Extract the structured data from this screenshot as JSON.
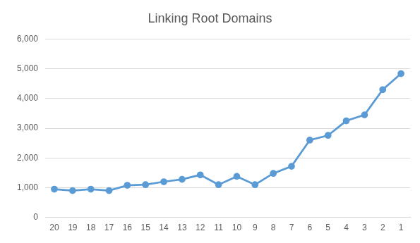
{
  "chart_data": {
    "type": "line",
    "title": "Linking Root Domains",
    "categories": [
      "20",
      "19",
      "18",
      "17",
      "16",
      "15",
      "14",
      "13",
      "12",
      "11",
      "10",
      "9",
      "8",
      "7",
      "6",
      "5",
      "4",
      "3",
      "2",
      "1"
    ],
    "values": [
      950,
      900,
      950,
      900,
      1080,
      1100,
      1200,
      1280,
      1430,
      1100,
      1380,
      1100,
      1480,
      1720,
      2600,
      2760,
      3250,
      3450,
      4300,
      4840
    ],
    "color": "#5b9bd5",
    "marker": "circle",
    "line_style": "solid",
    "ylim": [
      0,
      6000
    ],
    "yticks": [
      0,
      {
        "value": 1000,
        "label": "1,000"
      },
      {
        "value": 2000,
        "label": "2,000"
      },
      {
        "value": 3000,
        "label": "3,000"
      },
      {
        "value": 4000,
        "label": "4,000"
      },
      {
        "value": 5000,
        "label": "5,000"
      },
      {
        "value": 6000,
        "label": "6,000"
      }
    ],
    "grid": true
  }
}
